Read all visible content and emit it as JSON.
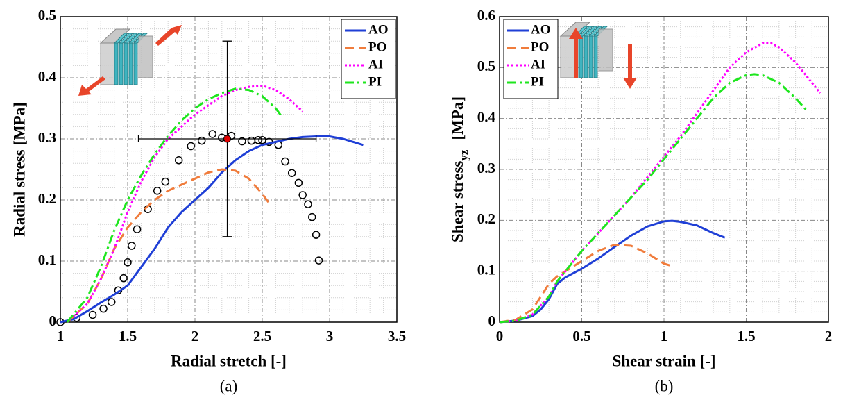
{
  "chart_data": [
    {
      "type": "line",
      "caption": "(a)",
      "xlabel": "Radial stretch [-]",
      "ylabel": "Radial stress [MPa]",
      "xlim": [
        1,
        3.5
      ],
      "xticks": [
        1,
        1.5,
        2,
        2.5,
        3,
        3.5
      ],
      "ylim": [
        0,
        0.5
      ],
      "yticks": [
        0,
        0.1,
        0.2,
        0.3,
        0.4,
        0.5
      ],
      "grid": true,
      "minor_grid": true,
      "legend": "upper right",
      "series": [
        {
          "name": "AO",
          "color": "#1f3fd6",
          "style": "solid",
          "x": [
            1,
            1.1,
            1.2,
            1.3,
            1.4,
            1.5,
            1.6,
            1.7,
            1.8,
            1.9,
            2.0,
            2.1,
            2.2,
            2.3,
            2.4,
            2.5,
            2.6,
            2.7,
            2.8,
            2.9,
            3.0,
            3.1,
            3.25
          ],
          "values": [
            0,
            0.005,
            0.018,
            0.032,
            0.045,
            0.06,
            0.09,
            0.12,
            0.155,
            0.18,
            0.2,
            0.22,
            0.245,
            0.265,
            0.28,
            0.29,
            0.295,
            0.3,
            0.303,
            0.304,
            0.304,
            0.3,
            0.29
          ]
        },
        {
          "name": "PO",
          "color": "#f07c3c",
          "style": "dashed",
          "x": [
            1.05,
            1.2,
            1.3,
            1.4,
            1.5,
            1.6,
            1.7,
            1.8,
            1.9,
            2.0,
            2.1,
            2.2,
            2.3,
            2.4,
            2.5,
            2.55
          ],
          "values": [
            0,
            0.03,
            0.07,
            0.12,
            0.155,
            0.18,
            0.2,
            0.215,
            0.225,
            0.235,
            0.245,
            0.25,
            0.248,
            0.235,
            0.21,
            0.195
          ]
        },
        {
          "name": "AI",
          "color": "#ff00ff",
          "style": "dotted",
          "x": [
            1.05,
            1.2,
            1.3,
            1.4,
            1.5,
            1.6,
            1.7,
            1.8,
            1.9,
            2.0,
            2.1,
            2.2,
            2.3,
            2.4,
            2.5,
            2.6,
            2.7,
            2.8
          ],
          "values": [
            0,
            0.03,
            0.07,
            0.12,
            0.18,
            0.23,
            0.27,
            0.3,
            0.32,
            0.34,
            0.355,
            0.37,
            0.38,
            0.385,
            0.387,
            0.38,
            0.365,
            0.345
          ]
        },
        {
          "name": "PI",
          "color": "#1ee61e",
          "style": "dashdot",
          "x": [
            1.05,
            1.2,
            1.3,
            1.4,
            1.5,
            1.6,
            1.7,
            1.8,
            1.9,
            2.0,
            2.1,
            2.2,
            2.3,
            2.4,
            2.5,
            2.6,
            2.65
          ],
          "values": [
            0,
            0.04,
            0.09,
            0.15,
            0.2,
            0.24,
            0.275,
            0.305,
            0.33,
            0.35,
            0.365,
            0.375,
            0.382,
            0.38,
            0.37,
            0.35,
            0.335
          ]
        }
      ],
      "markers": {
        "color": "#000000",
        "x": [
          1,
          1.12,
          1.24,
          1.32,
          1.38,
          1.43,
          1.47,
          1.5,
          1.53,
          1.57,
          1.65,
          1.72,
          1.78,
          1.88,
          1.97,
          2.05,
          2.13,
          2.2,
          2.27,
          2.35,
          2.42,
          2.47,
          2.5,
          2.55,
          2.62,
          2.67,
          2.72,
          2.77,
          2.8,
          2.84,
          2.87,
          2.9,
          2.92
        ],
        "values": [
          0,
          0.007,
          0.012,
          0.022,
          0.033,
          0.052,
          0.072,
          0.098,
          0.125,
          0.152,
          0.185,
          0.215,
          0.23,
          0.265,
          0.288,
          0.297,
          0.308,
          0.302,
          0.305,
          0.296,
          0.297,
          0.298,
          0.298,
          0.295,
          0.29,
          0.263,
          0.244,
          0.228,
          0.208,
          0.193,
          0.172,
          0.143,
          0.101
        ]
      },
      "mean": {
        "x": 2.24,
        "y": 0.3,
        "xerr": 0.66,
        "yerr": 0.16,
        "color": "#e00000"
      }
    },
    {
      "type": "line",
      "caption": "(b)",
      "xlabel": "Shear strain [-]",
      "ylabel": "Shear stress",
      "ylabel_sub": "yz",
      "ylabel_unit": "[MPa]",
      "xlim": [
        0,
        2
      ],
      "xticks": [
        0,
        0.5,
        1,
        1.5,
        2
      ],
      "ylim": [
        0,
        0.6
      ],
      "yticks": [
        0,
        0.1,
        0.2,
        0.3,
        0.4,
        0.5,
        0.6
      ],
      "grid": true,
      "minor_grid": true,
      "legend": "upper left",
      "series": [
        {
          "name": "AO",
          "color": "#1f3fd6",
          "style": "solid",
          "x": [
            0,
            0.1,
            0.2,
            0.25,
            0.3,
            0.35,
            0.4,
            0.5,
            0.6,
            0.7,
            0.8,
            0.9,
            1.0,
            1.05,
            1.1,
            1.2,
            1.3,
            1.37
          ],
          "values": [
            0,
            0.003,
            0.012,
            0.025,
            0.045,
            0.075,
            0.088,
            0.105,
            0.125,
            0.148,
            0.17,
            0.188,
            0.198,
            0.199,
            0.197,
            0.19,
            0.175,
            0.166
          ]
        },
        {
          "name": "PO",
          "color": "#f07c3c",
          "style": "dashed",
          "x": [
            0,
            0.1,
            0.2,
            0.25,
            0.3,
            0.35,
            0.4,
            0.5,
            0.6,
            0.7,
            0.8,
            0.9,
            1.0,
            1.05
          ],
          "values": [
            0,
            0.005,
            0.025,
            0.05,
            0.075,
            0.09,
            0.1,
            0.12,
            0.14,
            0.152,
            0.15,
            0.135,
            0.115,
            0.11
          ]
        },
        {
          "name": "AI",
          "color": "#ff00ff",
          "style": "dotted",
          "x": [
            0,
            0.1,
            0.2,
            0.3,
            0.35,
            0.4,
            0.5,
            0.6,
            0.7,
            0.8,
            0.9,
            1.0,
            1.1,
            1.2,
            1.3,
            1.4,
            1.5,
            1.6,
            1.65,
            1.7,
            1.8,
            1.9,
            1.95
          ],
          "values": [
            0,
            0.003,
            0.015,
            0.05,
            0.08,
            0.1,
            0.14,
            0.175,
            0.21,
            0.245,
            0.285,
            0.325,
            0.365,
            0.41,
            0.455,
            0.5,
            0.53,
            0.548,
            0.548,
            0.54,
            0.51,
            0.47,
            0.45
          ]
        },
        {
          "name": "PI",
          "color": "#1ee61e",
          "style": "dashdot",
          "x": [
            0,
            0.1,
            0.2,
            0.3,
            0.35,
            0.4,
            0.5,
            0.6,
            0.7,
            0.8,
            0.9,
            1.0,
            1.1,
            1.2,
            1.3,
            1.4,
            1.5,
            1.55,
            1.6,
            1.7,
            1.8,
            1.87
          ],
          "values": [
            0,
            0.003,
            0.015,
            0.05,
            0.08,
            0.1,
            0.14,
            0.175,
            0.21,
            0.245,
            0.28,
            0.32,
            0.36,
            0.4,
            0.44,
            0.47,
            0.485,
            0.487,
            0.485,
            0.47,
            0.44,
            0.415
          ]
        }
      ]
    }
  ]
}
